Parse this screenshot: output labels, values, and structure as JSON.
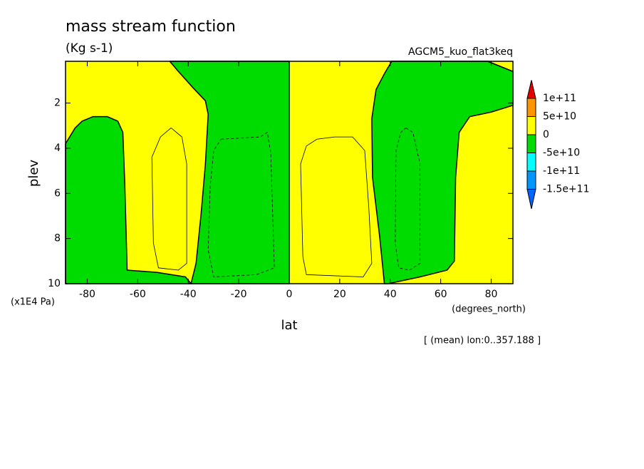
{
  "chart_data": {
    "type": "contour",
    "title": "mass stream function",
    "subtitle": "(Kg s-1)",
    "run_name": "AGCM5_kuo_flat3keq",
    "x_label": "lat",
    "x_unit": "(degrees_north)",
    "y_label": "plev",
    "y_unit": "(x1E4 Pa)",
    "footnote": "[ (mean) lon:0..357.188 ]",
    "xlim": [
      -88.6,
      88.6
    ],
    "xticks": [
      -80,
      -60,
      -40,
      -20,
      0,
      20,
      40,
      60,
      80
    ],
    "ylim": [
      10,
      0.15
    ],
    "yticks": [
      2,
      4,
      6,
      8,
      10
    ],
    "background_color": "#ffff00",
    "regions": [
      {
        "color": "#00dc00",
        "x": [
          -88.6,
          -84.8,
          -82.0,
          -77.7,
          -72.1,
          -67.9,
          -65.9,
          -65.1,
          -64.2,
          -52.4,
          -41.1,
          -38.9,
          -88.6
        ],
        "y": [
          3.8,
          3.1,
          2.8,
          2.6,
          2.6,
          2.8,
          3.3,
          5.7,
          9.4,
          9.5,
          9.7,
          10,
          10
        ]
      },
      {
        "color": "#00dc00",
        "x": [
          -47.3,
          0,
          0,
          -38.9,
          -36.9,
          -34.9,
          -33.2,
          -32.1,
          -33.2,
          -38.3,
          -43.9
        ],
        "y": [
          0.15,
          0.15,
          10,
          10,
          9.1,
          6.9,
          4.7,
          2.5,
          1.9,
          1.3,
          0.6
        ]
      },
      {
        "color": "#00dc00",
        "x": [
          40.6,
          78.6,
          88.6,
          88.6,
          80.0,
          71.5,
          67.3,
          65.9,
          65.4,
          62.5,
          51.8,
          39.2,
          37.7,
          35.8,
          33.0,
          32.7,
          34.4,
          37.7
        ],
        "y": [
          0.15,
          0.15,
          0.6,
          2.1,
          2.4,
          2.6,
          3.3,
          5.3,
          9.0,
          9.4,
          9.7,
          10,
          10,
          7.9,
          5.3,
          2.7,
          1.4,
          0.7
        ]
      }
    ],
    "contour_lines": [
      {
        "dashed": false,
        "x": [
          -46.8,
          -42.5,
          -40.6,
          -40.6,
          -43.9,
          -51.8,
          -53.8,
          -54.4,
          -51.0,
          -46.8
        ],
        "y": [
          3.1,
          3.5,
          4.7,
          9.1,
          9.4,
          9.3,
          8.2,
          4.4,
          3.5,
          3.1
        ]
      },
      {
        "dashed": true,
        "x": [
          -27.0,
          -11.5,
          -8.7,
          -7.3,
          -5.9,
          -13.0,
          -29.9,
          -32.1,
          -31.3,
          -29.9,
          -27.0
        ],
        "y": [
          3.6,
          3.5,
          3.3,
          4.2,
          9.3,
          9.6,
          9.7,
          8.5,
          5.7,
          4.1,
          3.6
        ]
      },
      {
        "dashed": false,
        "x": [
          6.8,
          11.0,
          18.0,
          25.1,
          29.9,
          31.5,
          32.7,
          29.3,
          6.8,
          5.4,
          4.5,
          6.8
        ],
        "y": [
          3.9,
          3.6,
          3.5,
          3.5,
          4.1,
          6.6,
          9.1,
          9.7,
          9.6,
          8.8,
          4.7,
          3.9
        ]
      },
      {
        "dashed": true,
        "x": [
          46.2,
          49.0,
          51.8,
          51.8,
          47.6,
          43.4,
          42.0,
          42.3,
          44.2,
          46.2
        ],
        "y": [
          3.1,
          3.3,
          4.7,
          9.1,
          9.4,
          9.3,
          8.2,
          4.1,
          3.3,
          3.1
        ]
      }
    ],
    "colorbar": {
      "levels": [
        {
          "value": -150000000000,
          "label": "-1.5e+11"
        },
        {
          "value": -100000000000,
          "label": "-1e+11"
        },
        {
          "value": -50000000000,
          "label": "-5e+10"
        },
        0,
        {
          "value": 50000000000,
          "label": "5e+10"
        },
        {
          "value": 100000000000,
          "label": "1e+11"
        }
      ],
      "colors": [
        "#0064ff",
        "#0096ff",
        "#00ffff",
        "#00dc00",
        "#ffff00",
        "#ff9600",
        "#e60000"
      ]
    }
  }
}
